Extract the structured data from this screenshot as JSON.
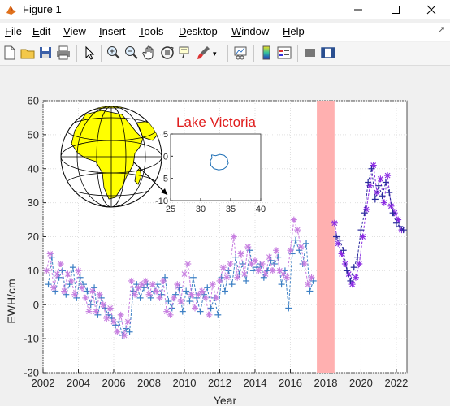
{
  "window": {
    "title": "Figure 1"
  },
  "menu": {
    "items": [
      {
        "pre": "",
        "u": "F",
        "post": "ile"
      },
      {
        "pre": "",
        "u": "E",
        "post": "dit"
      },
      {
        "pre": "",
        "u": "V",
        "post": "iew"
      },
      {
        "pre": "",
        "u": "I",
        "post": "nsert"
      },
      {
        "pre": "",
        "u": "T",
        "post": "ools"
      },
      {
        "pre": "",
        "u": "D",
        "post": "esktop"
      },
      {
        "pre": "",
        "u": "W",
        "post": "indow"
      },
      {
        "pre": "",
        "u": "H",
        "post": "elp"
      }
    ]
  },
  "toolbar": {
    "icons": [
      "new-figure-icon",
      "open-file-icon",
      "save-icon",
      "print-icon",
      "edit-plot-arrow-icon",
      "zoom-in-icon",
      "zoom-out-icon",
      "pan-hand-icon",
      "rotate-3d-icon",
      "data-cursor-icon",
      "brush-icon",
      "link-plot-icon",
      "colorbar-icon",
      "legend-icon",
      "hide-plot-tools-icon",
      "show-plot-tools-icon"
    ]
  },
  "colors": {
    "series_plus": "#3b7fc4",
    "series_star": "#c77ee0",
    "series_star_late": "#8a2be2",
    "series_plus_late": "#2a2a9c",
    "highlight_band": "#ffb0b0",
    "inset_title": "#e01c1c",
    "lake_outline": "#1f6fb5",
    "globe_land": "#ffff00",
    "globe_ocean": "#ffffff"
  },
  "chart_data": [
    {
      "type": "line",
      "title": "",
      "xlabel": "Year",
      "ylabel": "EWH/cm",
      "xlim": [
        2002,
        2022.6
      ],
      "ylim": [
        -20,
        60
      ],
      "xticks": [
        "2002",
        "2004",
        "2006",
        "2008",
        "2010",
        "2012",
        "2014",
        "2016",
        "2018",
        "2020",
        "2022"
      ],
      "yticks": [
        "-20",
        "-10",
        "0",
        "10",
        "20",
        "30",
        "40",
        "50",
        "60"
      ],
      "grid": true,
      "highlight_band": [
        2017.5,
        2018.5
      ],
      "series": [
        {
          "marker": "+",
          "x": [
            2002.3,
            2002.5,
            2002.7,
            2002.9,
            2003.1,
            2003.3,
            2003.5,
            2003.7,
            2003.9,
            2004.1,
            2004.3,
            2004.5,
            2004.7,
            2004.9,
            2005.1,
            2005.3,
            2005.5,
            2005.7,
            2005.9,
            2006.1,
            2006.3,
            2006.5,
            2006.7,
            2006.9,
            2007.1,
            2007.3,
            2007.5,
            2007.7,
            2007.9,
            2008.1,
            2008.3,
            2008.5,
            2008.7,
            2008.9,
            2009.1,
            2009.3,
            2009.5,
            2009.7,
            2009.9,
            2010.1,
            2010.3,
            2010.5,
            2010.7,
            2010.9,
            2011.1,
            2011.3,
            2011.5,
            2011.7,
            2011.9,
            2012.1,
            2012.3,
            2012.5,
            2012.7,
            2012.9,
            2013.1,
            2013.3,
            2013.5,
            2013.7,
            2013.9,
            2014.1,
            2014.3,
            2014.5,
            2014.7,
            2014.9,
            2015.1,
            2015.3,
            2015.5,
            2015.7,
            2015.9,
            2016.1,
            2016.3,
            2016.5,
            2016.7,
            2016.9,
            2017.1,
            2017.3
          ],
          "y": [
            6,
            14,
            4,
            8,
            10,
            3,
            6,
            11,
            2,
            8,
            6,
            4,
            0,
            5,
            -3,
            2,
            -1,
            -3,
            -4,
            -6,
            -5,
            -9,
            -7,
            -8,
            4,
            6,
            2,
            5,
            6,
            2,
            4,
            6,
            3,
            8,
            1,
            -1,
            3,
            5,
            -2,
            4,
            1,
            8,
            2,
            -2,
            3,
            5,
            -1,
            2,
            -3,
            8,
            4,
            10,
            6,
            14,
            9,
            12,
            7,
            16,
            10,
            11,
            12,
            8,
            10,
            13,
            12,
            14,
            6,
            10,
            -1,
            15,
            19,
            16,
            12,
            18,
            4,
            7
          ],
          "label_note": ""
        },
        {
          "marker": "*",
          "x": [
            2002.2,
            2002.4,
            2002.6,
            2002.8,
            2003.0,
            2003.2,
            2003.4,
            2003.6,
            2003.8,
            2004.0,
            2004.2,
            2004.4,
            2004.6,
            2004.8,
            2005.0,
            2005.2,
            2005.4,
            2005.6,
            2005.8,
            2006.0,
            2006.2,
            2006.4,
            2006.6,
            2006.8,
            2007.0,
            2007.2,
            2007.4,
            2007.6,
            2007.8,
            2008.0,
            2008.2,
            2008.4,
            2008.6,
            2008.8,
            2009.0,
            2009.2,
            2009.4,
            2009.6,
            2009.8,
            2010.0,
            2010.2,
            2010.4,
            2010.6,
            2010.8,
            2011.0,
            2011.2,
            2011.4,
            2011.6,
            2011.8,
            2012.0,
            2012.2,
            2012.4,
            2012.6,
            2012.8,
            2013.0,
            2013.2,
            2013.4,
            2013.6,
            2013.8,
            2014.0,
            2014.2,
            2014.4,
            2014.6,
            2014.8,
            2015.0,
            2015.2,
            2015.4,
            2015.6,
            2015.8,
            2016.0,
            2016.2,
            2016.4,
            2016.6,
            2016.8,
            2017.0,
            2017.2
          ],
          "y": [
            10,
            15,
            5,
            9,
            12,
            4,
            9,
            7,
            3,
            10,
            5,
            2,
            -2,
            4,
            -2,
            3,
            0,
            -4,
            -1,
            -5,
            -8,
            -3,
            -9,
            -5,
            7,
            3,
            5,
            6,
            7,
            3,
            6,
            4,
            2,
            7,
            -2,
            -3,
            2,
            6,
            1,
            9,
            12,
            3,
            -1,
            3,
            4,
            2,
            -3,
            6,
            2,
            7,
            11,
            8,
            12,
            20,
            8,
            15,
            9,
            17,
            12,
            13,
            10,
            12,
            9,
            14,
            10,
            16,
            10,
            9,
            8,
            16,
            25,
            22,
            17,
            12,
            6,
            8
          ]
        },
        {
          "marker": "*",
          "x": [
            2018.5,
            2018.7,
            2018.9,
            2019.1,
            2019.3,
            2019.5,
            2019.7,
            2019.9,
            2020.1,
            2020.3,
            2020.5,
            2020.7,
            2020.9,
            2021.1,
            2021.3,
            2021.5,
            2021.7,
            2021.9,
            2022.1,
            2022.3
          ],
          "y": [
            24,
            18,
            15,
            12,
            9,
            6,
            8,
            12,
            20,
            28,
            35,
            41,
            33,
            37,
            30,
            38,
            29,
            27,
            25,
            22
          ]
        },
        {
          "marker": "+",
          "x": [
            2018.6,
            2018.8,
            2019.0,
            2019.2,
            2019.4,
            2019.6,
            2019.8,
            2020.0,
            2020.2,
            2020.4,
            2020.6,
            2020.8,
            2021.0,
            2021.2,
            2021.4,
            2021.6,
            2021.8,
            2022.0,
            2022.2,
            2022.4
          ],
          "y": [
            20,
            19,
            16,
            10,
            7,
            11,
            14,
            22,
            27,
            36,
            40,
            31,
            35,
            32,
            36,
            33,
            27,
            24,
            23,
            22
          ]
        }
      ]
    },
    {
      "type": "line",
      "title": "Lake Victoria",
      "xlabel": "",
      "ylabel": "",
      "xlim": [
        25,
        40
      ],
      "ylim": [
        -10,
        5
      ],
      "xticks": [
        "25",
        "30",
        "35",
        "40"
      ],
      "yticks": [
        "-10",
        "-5",
        "0",
        "5"
      ],
      "grid": false,
      "series": [
        {
          "x": [
            31.8,
            32.5,
            33.2,
            33.9,
            34.4,
            34.6,
            34.2,
            33.8,
            33.0,
            32.2,
            31.7,
            31.6,
            31.9,
            31.8
          ],
          "y": [
            0.3,
            0.1,
            0.4,
            0.2,
            -0.4,
            -1.6,
            -2.5,
            -2.9,
            -3.1,
            -2.8,
            -2.1,
            -1.0,
            -0.4,
            0.3
          ]
        }
      ]
    }
  ]
}
